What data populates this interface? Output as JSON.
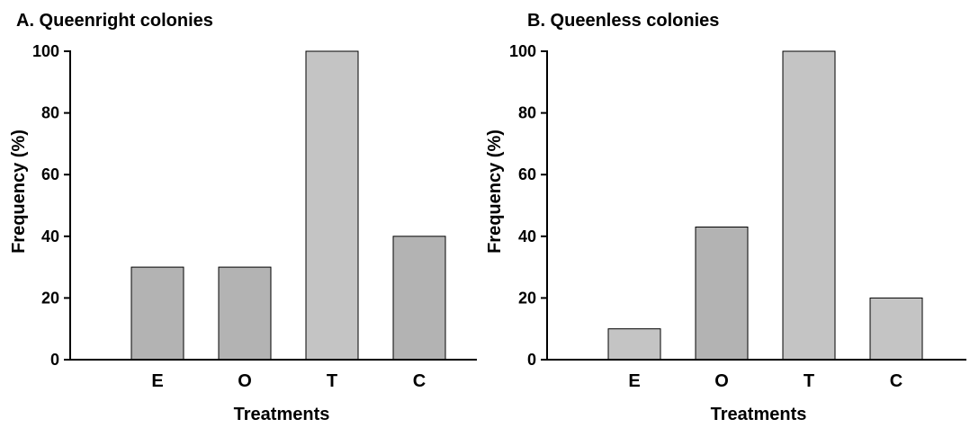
{
  "chart_data": [
    {
      "type": "bar",
      "title": "A. Queenright colonies",
      "xlabel": "Treatments",
      "ylabel": "Frequency (%)",
      "ylim": [
        0,
        100
      ],
      "yticks": [
        0,
        20,
        40,
        60,
        80,
        100
      ],
      "grid": false,
      "categories": [
        "E",
        "O",
        "T",
        "C"
      ],
      "values": [
        30,
        30,
        100,
        40
      ],
      "colors": [
        "#b3b3b3",
        "#b3b3b3",
        "#c4c4c4",
        "#b3b3b3"
      ]
    },
    {
      "type": "bar",
      "title": "B. Queenless colonies",
      "xlabel": "Treatments",
      "ylabel": "Frequency (%)",
      "ylim": [
        0,
        100
      ],
      "yticks": [
        0,
        20,
        40,
        60,
        80,
        100
      ],
      "grid": false,
      "categories": [
        "E",
        "O",
        "T",
        "C"
      ],
      "values": [
        10,
        43,
        100,
        20
      ],
      "colors": [
        "#c4c4c4",
        "#b3b3b3",
        "#c4c4c4",
        "#c4c4c4"
      ]
    }
  ]
}
